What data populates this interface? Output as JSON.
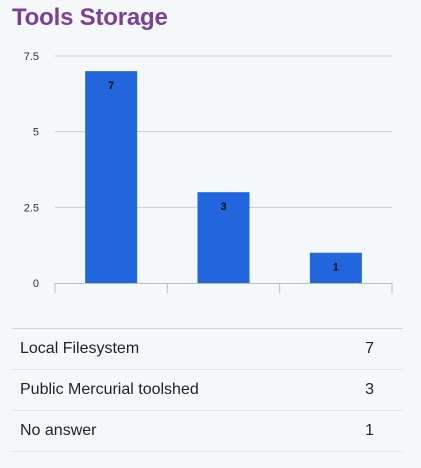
{
  "title": "Tools Storage",
  "colors": {
    "title": "#7b3f98",
    "bar": "#2166dd",
    "grid": "#c8ced6",
    "axis": "#b7bec7"
  },
  "chart_data": {
    "type": "bar",
    "categories": [
      "Local Filesystem",
      "Public Mercurial toolshed",
      "No answer"
    ],
    "values": [
      7,
      3,
      1
    ],
    "data_labels": [
      "7",
      "3",
      "1"
    ],
    "yticks": [
      "0",
      "2.5",
      "5",
      "7.5"
    ],
    "ylim": [
      0,
      7.5
    ],
    "grid": true,
    "legend": "table below chart"
  },
  "table": {
    "rows": [
      {
        "label": "Local Filesystem",
        "value": "7"
      },
      {
        "label": "Public Mercurial toolshed",
        "value": "3"
      },
      {
        "label": "No answer",
        "value": "1"
      }
    ]
  }
}
